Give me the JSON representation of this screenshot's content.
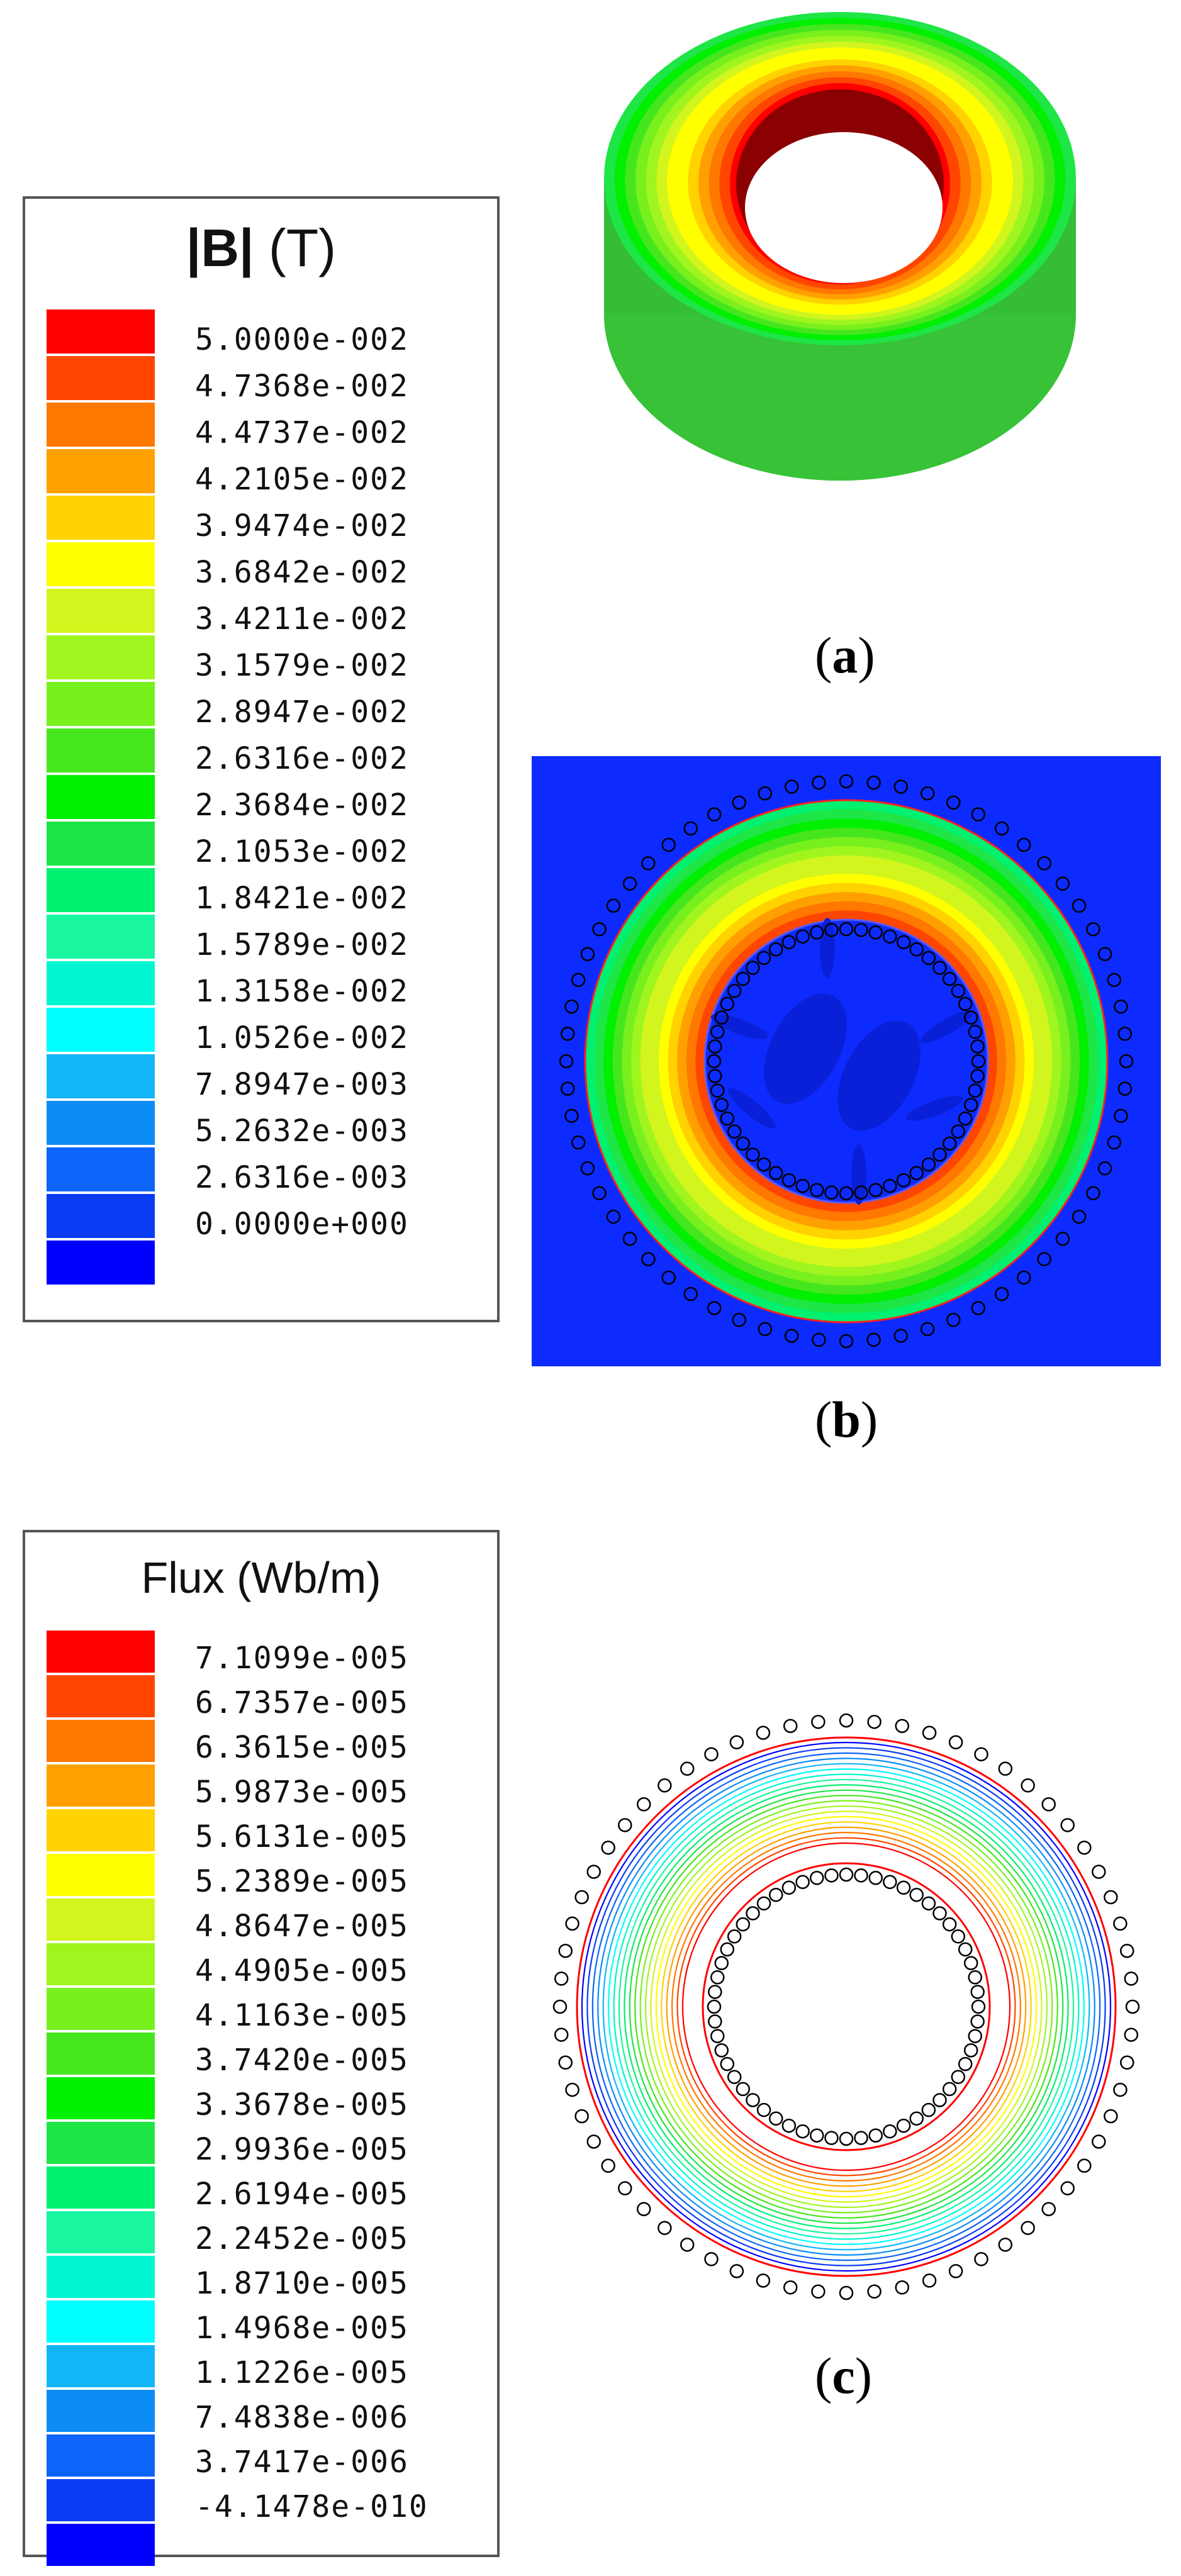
{
  "colors": [
    "#0000ff",
    "#0a3cf4",
    "#0d64f8",
    "#0d8cf5",
    "#12b6f8",
    "#00ffff",
    "#00f6d0",
    "#19f6a0",
    "#00f070",
    "#1ee646",
    "#00f000",
    "#46e61e",
    "#78f01e",
    "#a0f51e",
    "#d2f51e",
    "#ffff00",
    "#ffd200",
    "#ffa000",
    "#ff7800",
    "#ff4600",
    "#ff0000"
  ],
  "legend_b": {
    "title_symbol": "|B|",
    "title_unit": " (T)",
    "values": [
      "5.0000e-002",
      "4.7368e-002",
      "4.4737e-002",
      "4.2105e-002",
      "3.9474e-002",
      "3.6842e-002",
      "3.4211e-002",
      "3.1579e-002",
      "2.8947e-002",
      "2.6316e-002",
      "2.3684e-002",
      "2.1053e-002",
      "1.8421e-002",
      "1.5789e-002",
      "1.3158e-002",
      "1.0526e-002",
      "7.8947e-003",
      "5.2632e-003",
      "2.6316e-003",
      "0.0000e+000"
    ]
  },
  "legend_c": {
    "title": "Flux (Wb/m)",
    "values": [
      "7.1099e-005",
      "6.7357e-005",
      "6.3615e-005",
      "5.9873e-005",
      "5.6131e-005",
      "5.2389e-005",
      "4.8647e-005",
      "4.4905e-005",
      "4.1163e-005",
      "3.7420e-005",
      "3.3678e-005",
      "2.9936e-005",
      "2.6194e-005",
      "2.2452e-005",
      "1.8710e-005",
      "1.4968e-005",
      "1.1226e-005",
      "7.4838e-006",
      "3.7417e-006",
      "-4.1478e-010"
    ]
  },
  "panels": {
    "a": "a",
    "b": "b",
    "c": "c"
  }
}
